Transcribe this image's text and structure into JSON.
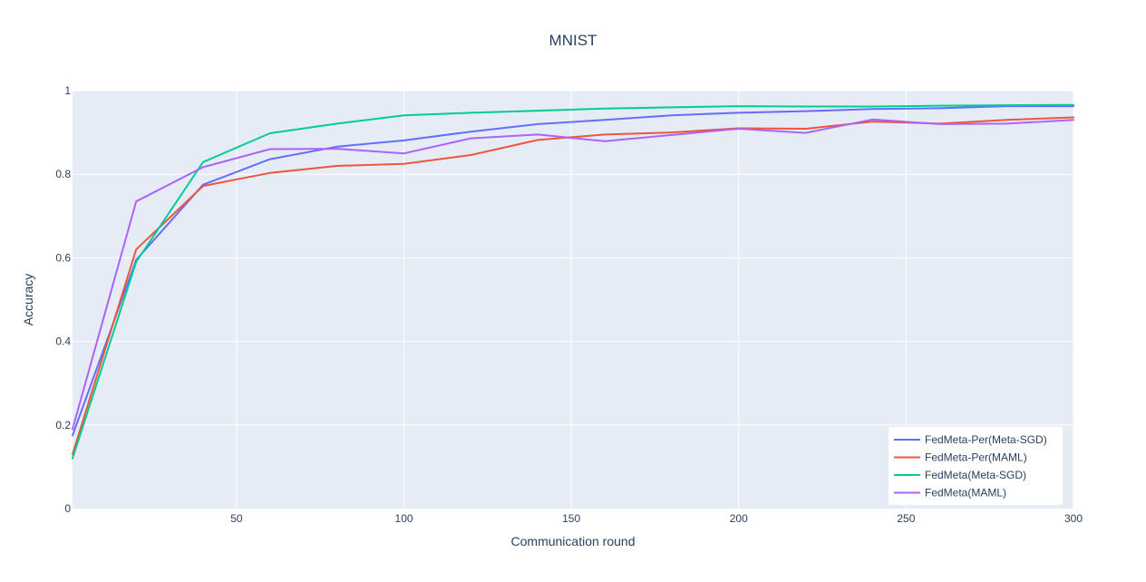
{
  "chart_data": {
    "type": "line",
    "title": "MNIST",
    "xlabel": "Communication round",
    "ylabel": "Accuracy",
    "xlim": [
      1,
      300
    ],
    "ylim": [
      0,
      1
    ],
    "x_ticks": [
      50,
      100,
      150,
      200,
      250,
      300
    ],
    "y_ticks": [
      0,
      0.2,
      0.4,
      0.6,
      0.8,
      1
    ],
    "y_tick_labels": [
      "0",
      "0.2",
      "0.4",
      "0.6",
      "0.8",
      "1"
    ],
    "grid": true,
    "legend_position": "bottom-right",
    "x": [
      1,
      20,
      40,
      60,
      80,
      100,
      120,
      140,
      160,
      180,
      200,
      220,
      240,
      260,
      280,
      300
    ],
    "series": [
      {
        "name": "FedMeta-Per(Meta-SGD)",
        "color": "#636efa",
        "values": [
          0.175,
          0.595,
          0.775,
          0.836,
          0.866,
          0.881,
          0.902,
          0.92,
          0.93,
          0.941,
          0.947,
          0.951,
          0.956,
          0.958,
          0.963,
          0.963
        ]
      },
      {
        "name": "FedMeta-Per(MAML)",
        "color": "#ef553b",
        "values": [
          0.13,
          0.62,
          0.772,
          0.803,
          0.82,
          0.825,
          0.846,
          0.882,
          0.895,
          0.9,
          0.91,
          0.909,
          0.926,
          0.921,
          0.93,
          0.936
        ]
      },
      {
        "name": "FedMeta(Meta-SGD)",
        "color": "#00cc96",
        "values": [
          0.12,
          0.59,
          0.829,
          0.898,
          0.921,
          0.941,
          0.947,
          0.952,
          0.957,
          0.96,
          0.963,
          0.962,
          0.962,
          0.964,
          0.965,
          0.966
        ]
      },
      {
        "name": "FedMeta(MAML)",
        "color": "#ab63fa",
        "values": [
          0.19,
          0.735,
          0.817,
          0.86,
          0.861,
          0.85,
          0.886,
          0.895,
          0.879,
          0.894,
          0.909,
          0.899,
          0.931,
          0.92,
          0.921,
          0.93
        ]
      }
    ]
  }
}
